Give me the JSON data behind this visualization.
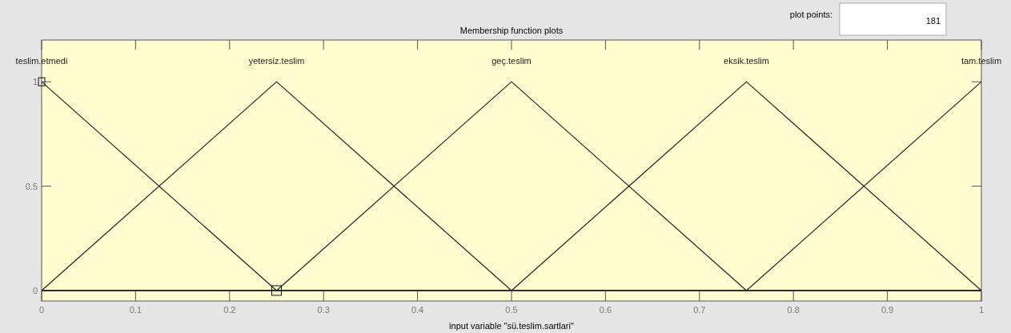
{
  "chart_data": {
    "type": "line",
    "title": "Membership function plots",
    "xlabel": "input variable \"sü.teslim.sartlari\"",
    "xlim": [
      0,
      1
    ],
    "ylim": [
      -0.05,
      1.2
    ],
    "xticks": [
      0,
      0.1,
      0.2,
      0.3,
      0.4,
      0.5,
      0.6,
      0.7,
      0.8,
      0.9,
      1
    ],
    "yticks": [
      0,
      0.5,
      1
    ],
    "annotations": [
      "plot points:",
      "181"
    ],
    "series": [
      {
        "name": "teslim.etmedi",
        "color": "#222222",
        "x": [
          0,
          0.25,
          1
        ],
        "values": [
          1,
          0,
          0
        ]
      },
      {
        "name": "yetersiz.teslim",
        "color": "#222222",
        "x": [
          0,
          0.25,
          0.5,
          1
        ],
        "values": [
          0,
          1,
          0,
          0
        ]
      },
      {
        "name": "geç.teslim",
        "color": "#222222",
        "x": [
          0,
          0.25,
          0.5,
          0.75,
          1
        ],
        "values": [
          0,
          0,
          1,
          0,
          0
        ]
      },
      {
        "name": "eksik.teslim",
        "color": "#222222",
        "x": [
          0,
          0.5,
          0.75,
          1
        ],
        "values": [
          0,
          0,
          1,
          0
        ]
      },
      {
        "name": "tam.teslim",
        "color": "#222222",
        "x": [
          0,
          0.75,
          1
        ],
        "values": [
          0,
          0,
          1
        ]
      }
    ]
  }
}
